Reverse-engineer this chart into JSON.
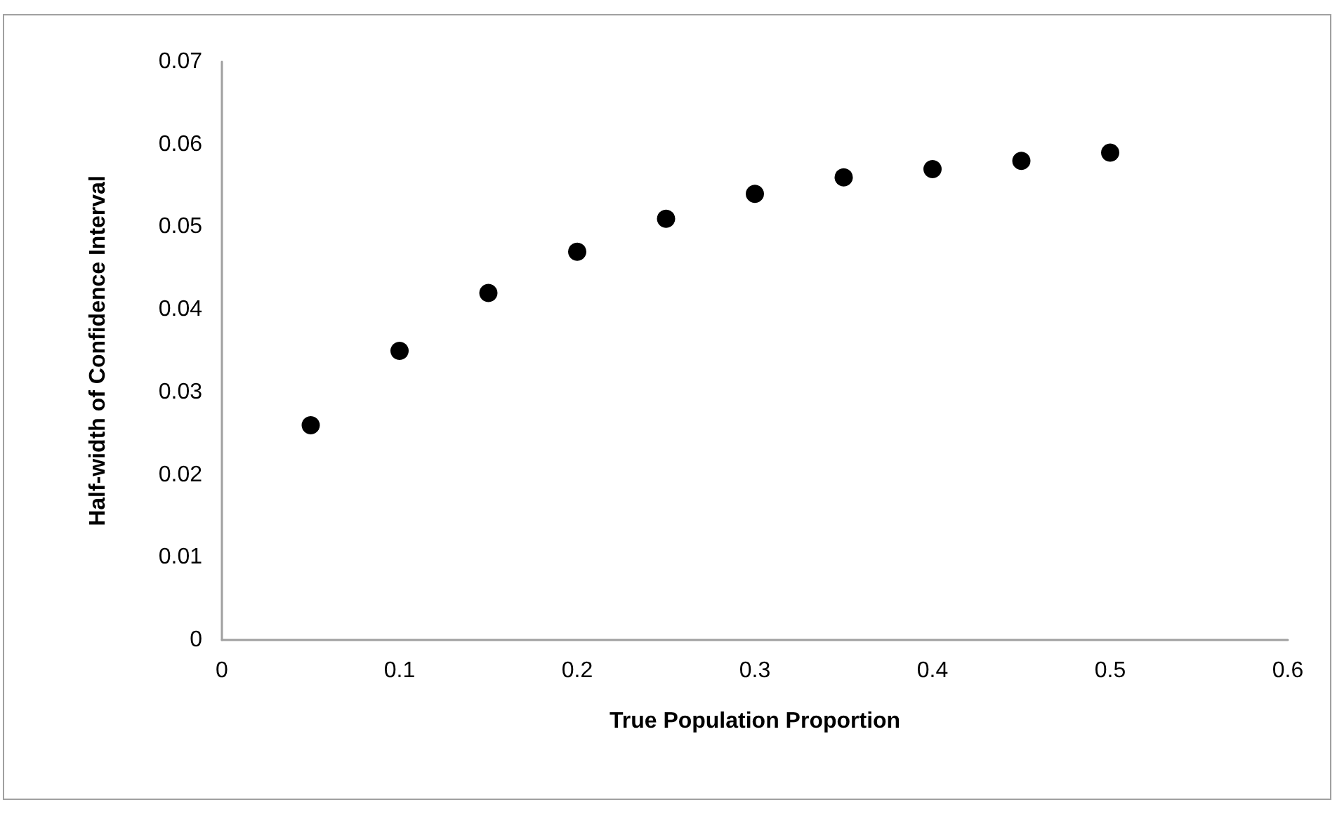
{
  "chart_data": {
    "type": "scatter",
    "xlabel": "True Population Proportion",
    "ylabel": "Half-width of Confidence Interval",
    "x": [
      0.05,
      0.1,
      0.15,
      0.2,
      0.25,
      0.3,
      0.35,
      0.4,
      0.45,
      0.5
    ],
    "series": [
      {
        "color": "#000000",
        "values": [
          0.026,
          0.035,
          0.042,
          0.047,
          0.051,
          0.054,
          0.056,
          0.057,
          0.058,
          0.059
        ]
      }
    ],
    "xlim": [
      0,
      0.6
    ],
    "xticks": [
      0,
      0.1,
      0.2,
      0.3,
      0.4,
      0.5,
      0.6
    ],
    "ylim": [
      0,
      0.07
    ],
    "yticks": [
      0,
      0.01,
      0.02,
      0.03,
      0.04,
      0.05,
      0.06,
      0.07
    ],
    "marker": "circle"
  }
}
